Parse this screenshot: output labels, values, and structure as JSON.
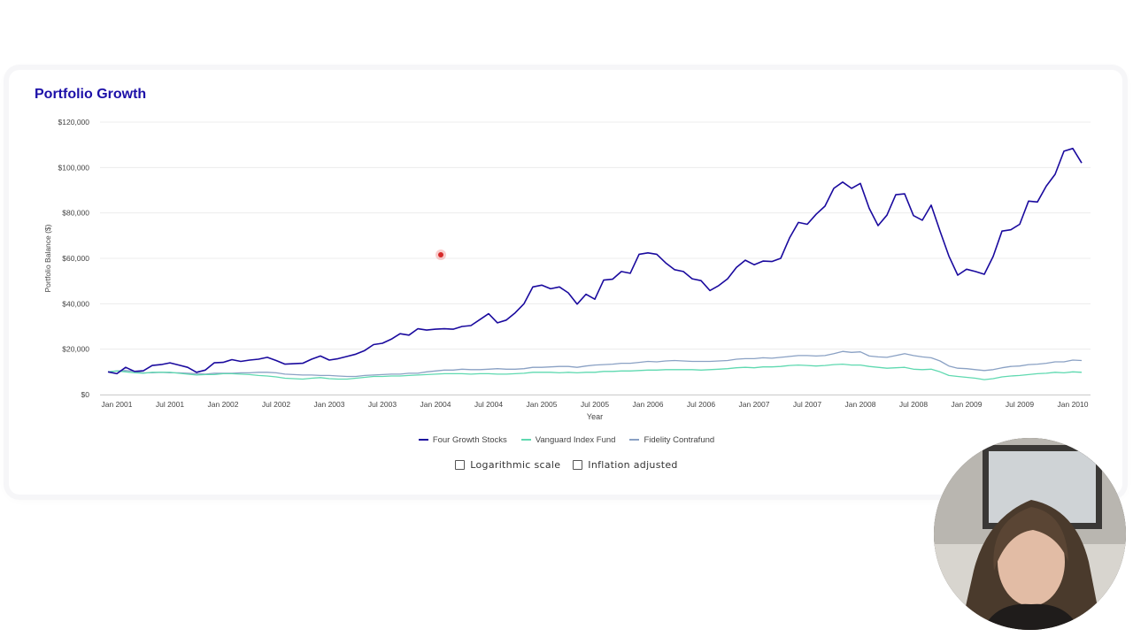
{
  "title": "Portfolio Growth",
  "options": {
    "log_label": "Logarithmic scale",
    "log_checked": false,
    "inflation_label": "Inflation adjusted",
    "inflation_checked": false
  },
  "chart_data": {
    "type": "line",
    "title": "Portfolio Growth",
    "xlabel": "Year",
    "ylabel": "Portfolio Balance ($)",
    "ylim": [
      0,
      120000
    ],
    "y_ticks": [
      0,
      20000,
      40000,
      60000,
      80000,
      100000,
      120000
    ],
    "y_tick_labels": [
      "$0",
      "$20,000",
      "$40,000",
      "$60,000",
      "$80,000",
      "$100,000",
      "$120,000"
    ],
    "x_tick_labels": [
      "Jan 2001",
      "Jul 2001",
      "Jan 2002",
      "Jul 2002",
      "Jan 2003",
      "Jul 2003",
      "Jan 2004",
      "Jul 2004",
      "Jan 2005",
      "Jul 2005",
      "Jan 2006",
      "Jul 2006",
      "Jan 2007",
      "Jul 2007",
      "Jan 2008",
      "Jul 2008",
      "Jan 2009",
      "Jul 2009",
      "Jan 2010"
    ],
    "grid": true,
    "legend_position": "bottom",
    "x": [
      "2000-12",
      "2001-01",
      "2001-02",
      "2001-03",
      "2001-04",
      "2001-05",
      "2001-06",
      "2001-07",
      "2001-08",
      "2001-09",
      "2001-10",
      "2001-11",
      "2001-12",
      "2002-01",
      "2002-02",
      "2002-03",
      "2002-04",
      "2002-05",
      "2002-06",
      "2002-07",
      "2002-08",
      "2002-09",
      "2002-10",
      "2002-11",
      "2002-12",
      "2003-01",
      "2003-02",
      "2003-03",
      "2003-04",
      "2003-05",
      "2003-06",
      "2003-07",
      "2003-08",
      "2003-09",
      "2003-10",
      "2003-11",
      "2003-12",
      "2004-01",
      "2004-02",
      "2004-03",
      "2004-04",
      "2004-05",
      "2004-06",
      "2004-07",
      "2004-08",
      "2004-09",
      "2004-10",
      "2004-11",
      "2004-12",
      "2005-01",
      "2005-02",
      "2005-03",
      "2005-04",
      "2005-05",
      "2005-06",
      "2005-07",
      "2005-08",
      "2005-09",
      "2005-10",
      "2005-11",
      "2005-12",
      "2006-01",
      "2006-02",
      "2006-03",
      "2006-04",
      "2006-05",
      "2006-06",
      "2006-07",
      "2006-08",
      "2006-09",
      "2006-10",
      "2006-11",
      "2006-12",
      "2007-01",
      "2007-02",
      "2007-03",
      "2007-04",
      "2007-05",
      "2007-06",
      "2007-07",
      "2007-08",
      "2007-09",
      "2007-10",
      "2007-11",
      "2007-12",
      "2008-01",
      "2008-02",
      "2008-03",
      "2008-04",
      "2008-05",
      "2008-06",
      "2008-07",
      "2008-08",
      "2008-09",
      "2008-10",
      "2008-11",
      "2008-12",
      "2009-01",
      "2009-02",
      "2009-03",
      "2009-04",
      "2009-05",
      "2009-06",
      "2009-07",
      "2009-08",
      "2009-09",
      "2009-10",
      "2009-11",
      "2009-12",
      "2010-01",
      "2010-02"
    ],
    "series": [
      {
        "name": "Four Growth Stocks",
        "color": "#1a0a9e",
        "values": [
          10000,
          9200,
          12000,
          10200,
          10500,
          12800,
          13200,
          14000,
          13000,
          12000,
          9800,
          10800,
          14000,
          14200,
          15400,
          14600,
          15200,
          15600,
          16400,
          15000,
          13400,
          13600,
          13800,
          15600,
          17000,
          15200,
          15800,
          16800,
          17800,
          19400,
          22000,
          22600,
          24400,
          26800,
          26200,
          29000,
          28400,
          28800,
          29000,
          28800,
          30000,
          30400,
          33000,
          35600,
          31600,
          32800,
          36000,
          40000,
          47400,
          48200,
          46600,
          47400,
          44800,
          39800,
          44200,
          42000,
          50400,
          50800,
          54200,
          53400,
          61800,
          62400,
          61800,
          58000,
          55000,
          54200,
          51000,
          50200,
          45800,
          48000,
          51000,
          56000,
          59200,
          57200,
          58800,
          58600,
          60000,
          69000,
          75800,
          75000,
          79400,
          83000,
          90800,
          93600,
          90800,
          93000,
          82000,
          74400,
          79000,
          88000,
          88400,
          78800,
          76800,
          83400,
          72000,
          61000,
          52600,
          55200,
          54200,
          53000,
          60800,
          72000,
          72600,
          75000,
          85200,
          84800,
          91800,
          97000,
          107200,
          108400,
          102000
        ]
      },
      {
        "name": "Vanguard Index Fund",
        "color": "#5fd9b0",
        "values": [
          10000,
          10400,
          10000,
          9600,
          9400,
          9800,
          9800,
          9800,
          9400,
          9000,
          8600,
          8800,
          8800,
          9200,
          9200,
          9000,
          8800,
          8400,
          8200,
          7800,
          7200,
          7000,
          6800,
          7200,
          7500,
          7000,
          6800,
          6800,
          7200,
          7600,
          8000,
          8000,
          8200,
          8200,
          8400,
          8600,
          8800,
          9000,
          9200,
          9200,
          9200,
          9000,
          9200,
          9200,
          9000,
          9000,
          9200,
          9400,
          9800,
          9800,
          9800,
          9600,
          9800,
          9600,
          9800,
          9800,
          10200,
          10200,
          10400,
          10400,
          10600,
          10800,
          10800,
          11000,
          11000,
          11000,
          11000,
          10800,
          11000,
          11200,
          11400,
          11800,
          12000,
          11800,
          12200,
          12200,
          12400,
          12800,
          13000,
          12800,
          12600,
          12800,
          13200,
          13400,
          13000,
          13000,
          12400,
          12000,
          11600,
          11800,
          12000,
          11200,
          11000,
          11200,
          10000,
          8400,
          8000,
          7600,
          7200,
          6600,
          7000,
          7800,
          8200,
          8400,
          8800,
          9200,
          9400,
          9800,
          9600,
          10000,
          9800
        ]
      },
      {
        "name": "Fidelity Contrafund",
        "color": "#8aa1c4",
        "values": [
          10000,
          10400,
          10600,
          10200,
          9600,
          9600,
          9800,
          9600,
          9600,
          9400,
          9200,
          9000,
          9400,
          9400,
          9400,
          9600,
          9600,
          9800,
          9800,
          9600,
          9000,
          8800,
          8600,
          8600,
          8400,
          8400,
          8200,
          8000,
          8000,
          8400,
          8600,
          8800,
          9000,
          9000,
          9400,
          9400,
          10000,
          10400,
          10800,
          10800,
          11200,
          11000,
          11000,
          11200,
          11400,
          11200,
          11200,
          11400,
          12000,
          12000,
          12200,
          12400,
          12400,
          12000,
          12600,
          13000,
          13200,
          13400,
          13800,
          13800,
          14200,
          14600,
          14400,
          14800,
          15000,
          14800,
          14600,
          14600,
          14600,
          14800,
          15000,
          15600,
          15800,
          15800,
          16200,
          16000,
          16400,
          16800,
          17200,
          17200,
          17000,
          17200,
          18000,
          19000,
          18600,
          18800,
          17000,
          16600,
          16400,
          17200,
          18000,
          17200,
          16600,
          16200,
          14800,
          12600,
          11600,
          11400,
          11000,
          10600,
          11000,
          11800,
          12400,
          12600,
          13200,
          13400,
          13800,
          14400,
          14400,
          15200,
          15000
        ]
      }
    ]
  }
}
